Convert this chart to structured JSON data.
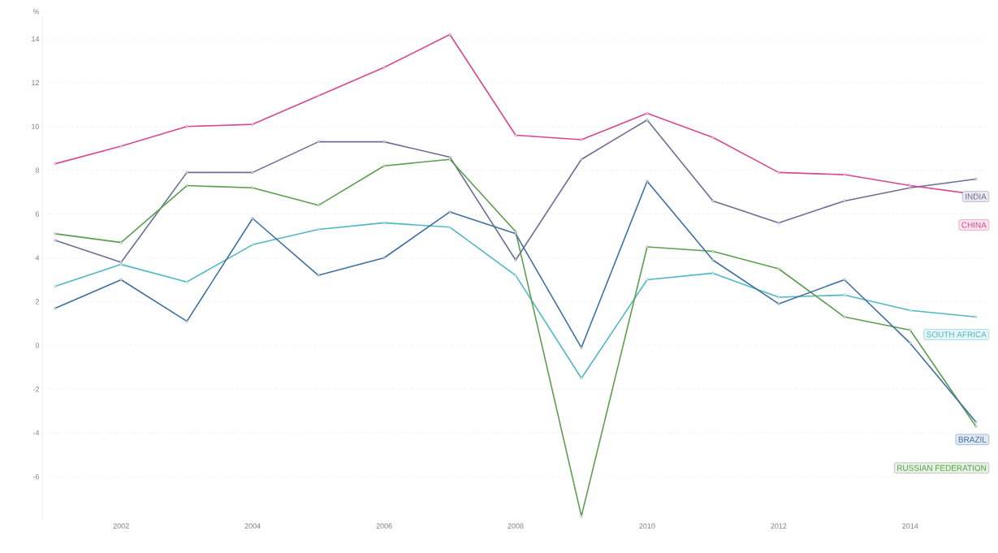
{
  "chart_data": {
    "type": "line",
    "ylabel": "%",
    "x": [
      2001,
      2002,
      2003,
      2004,
      2005,
      2006,
      2007,
      2008,
      2009,
      2010,
      2011,
      2012,
      2013,
      2014,
      2015
    ],
    "series": [
      {
        "name": "INDIA",
        "color": "#6b6e94",
        "values": [
          4.8,
          3.8,
          7.9,
          7.9,
          9.3,
          9.3,
          8.6,
          3.9,
          8.5,
          10.3,
          6.6,
          5.6,
          6.6,
          7.2,
          7.6
        ]
      },
      {
        "name": "CHINA",
        "color": "#d6488f",
        "values": [
          8.3,
          9.1,
          10.0,
          10.1,
          11.4,
          12.7,
          14.2,
          9.6,
          9.4,
          10.6,
          9.5,
          7.9,
          7.8,
          7.3,
          6.9
        ]
      },
      {
        "name": "SOUTH AFRICA",
        "color": "#4fb8c4",
        "values": [
          2.7,
          3.7,
          2.9,
          4.6,
          5.3,
          5.6,
          5.4,
          3.2,
          -1.5,
          3.0,
          3.3,
          2.2,
          2.3,
          1.6,
          1.3
        ]
      },
      {
        "name": "RUSSIAN FEDERATION",
        "color": "#5c9e4f",
        "values": [
          5.1,
          4.7,
          7.3,
          7.2,
          6.4,
          8.2,
          8.5,
          5.2,
          -7.8,
          4.5,
          4.3,
          3.5,
          1.3,
          0.7,
          -3.7
        ]
      },
      {
        "name": "BRAZIL",
        "color": "#3f6fa0",
        "values": [
          1.7,
          3.0,
          1.1,
          5.8,
          3.2,
          4.0,
          6.1,
          5.1,
          -0.1,
          7.5,
          3.9,
          1.9,
          3.0,
          0.1,
          -3.5
        ]
      }
    ],
    "xlim": [
      2000.8,
      2015.2
    ],
    "xticks": [
      2002,
      2004,
      2006,
      2008,
      2010,
      2012,
      2014
    ],
    "ylim": [
      -8,
      15
    ],
    "yticks": [
      -6,
      -4,
      -2,
      0,
      2,
      4,
      6,
      8,
      10,
      12,
      14
    ],
    "grid": "y",
    "legend": "right",
    "marker": "circle",
    "line_style": "solid"
  }
}
